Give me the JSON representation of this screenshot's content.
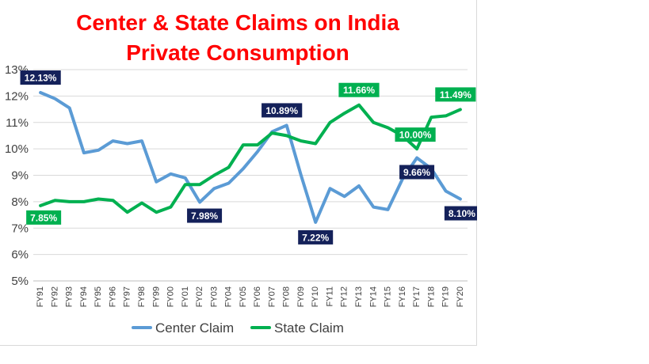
{
  "chart_data": {
    "type": "line",
    "title": [
      "Center & State Claims on India",
      "Private Consumption"
    ],
    "xlabel": "",
    "ylabel": "",
    "ylim": [
      5,
      13
    ],
    "y_ticks": [
      "5%",
      "6%",
      "7%",
      "8%",
      "9%",
      "10%",
      "11%",
      "12%",
      "13%"
    ],
    "grid": true,
    "legend_position": "bottom",
    "categories": [
      "FY91",
      "FY92",
      "FY93",
      "FY94",
      "FY95",
      "FY96",
      "FY97",
      "FY98",
      "FY99",
      "FY00",
      "FY01",
      "FY02",
      "FY03",
      "FY04",
      "FY05",
      "FY06",
      "FY07",
      "FY08",
      "FY09",
      "FY10",
      "FY11",
      "FY12",
      "FY13",
      "FY14",
      "FY15",
      "FY16",
      "FY17",
      "FY18",
      "FY19",
      "FY20"
    ],
    "series": [
      {
        "name": "Center Claim",
        "color": "#5b9bd5",
        "label_color": "#14215a",
        "values": [
          12.13,
          11.9,
          11.55,
          9.85,
          9.95,
          10.3,
          10.2,
          10.3,
          8.75,
          9.05,
          8.9,
          7.98,
          8.5,
          8.7,
          9.25,
          9.9,
          10.65,
          10.89,
          9.0,
          7.22,
          8.5,
          8.2,
          8.6,
          7.8,
          7.7,
          8.85,
          9.66,
          9.25,
          8.4,
          8.1
        ],
        "labels": [
          {
            "index": 0,
            "text": "12.13%"
          },
          {
            "index": 11,
            "text": "7.98%"
          },
          {
            "index": 17,
            "text": "10.89%"
          },
          {
            "index": 19,
            "text": "7.22%"
          },
          {
            "index": 26,
            "text": "9.66%"
          },
          {
            "index": 29,
            "text": "8.10%"
          }
        ]
      },
      {
        "name": "State Claim",
        "color": "#00b050",
        "label_color": "#00b050",
        "values": [
          7.85,
          8.05,
          8.0,
          8.0,
          8.1,
          8.05,
          7.6,
          7.95,
          7.6,
          7.8,
          8.65,
          8.65,
          9.0,
          9.3,
          10.15,
          10.15,
          10.6,
          10.5,
          10.3,
          10.2,
          11.0,
          11.35,
          11.66,
          11.0,
          10.8,
          10.5,
          10.0,
          11.2,
          11.25,
          11.49
        ],
        "labels": [
          {
            "index": 0,
            "text": "7.85%"
          },
          {
            "index": 22,
            "text": "11.66%"
          },
          {
            "index": 26,
            "text": "10.00%"
          },
          {
            "index": 29,
            "text": "11.49%"
          }
        ]
      }
    ]
  }
}
